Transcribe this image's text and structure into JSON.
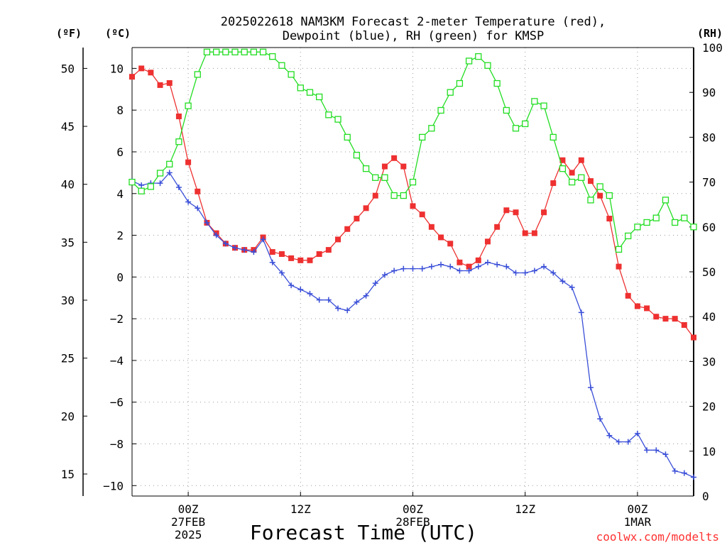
{
  "chart_data": {
    "type": "line",
    "title_line1": "2025022618 NAM3KM Forecast 2-meter Temperature (red),",
    "title_line2": "Dewpoint (blue), RH (green) for KMSP",
    "xlabel": "Forecast Time (UTC)",
    "credit": "coolwx.com/modelts",
    "units": {
      "fahrenheit": "(ºF)",
      "celsius": "(ºC)",
      "rh": "(RH)"
    },
    "x_range_hours": [
      -6,
      54
    ],
    "x_ticks": [
      {
        "hour": 0,
        "lines": [
          "00Z",
          "27FEB",
          "2025"
        ]
      },
      {
        "hour": 12,
        "lines": [
          "12Z"
        ]
      },
      {
        "hour": 24,
        "lines": [
          "00Z",
          "28FEB"
        ]
      },
      {
        "hour": 36,
        "lines": [
          "12Z"
        ]
      },
      {
        "hour": 48,
        "lines": [
          "00Z",
          "1MAR"
        ]
      }
    ],
    "celsius_axis": {
      "range": [
        -10.5,
        11
      ],
      "ticks": [
        -10,
        -8,
        -6,
        -4,
        -2,
        0,
        2,
        4,
        6,
        8,
        10
      ]
    },
    "fahrenheit_axis": {
      "ticks": [
        15,
        20,
        25,
        30,
        35,
        40,
        45,
        50
      ]
    },
    "rh_axis": {
      "range": [
        0,
        100
      ],
      "ticks": [
        0,
        10,
        20,
        30,
        40,
        50,
        60,
        70,
        80,
        90,
        100
      ]
    },
    "grid": true,
    "series": [
      {
        "name": "Temperature",
        "color": "#ee3030",
        "axis": "celsius",
        "marker": "filled-square",
        "x": [
          -6,
          -5,
          -4,
          -3,
          -2,
          -1,
          0,
          1,
          2,
          3,
          4,
          5,
          6,
          7,
          8,
          9,
          10,
          11,
          12,
          13,
          14,
          15,
          16,
          17,
          18,
          19,
          20,
          21,
          22,
          23,
          24,
          25,
          26,
          27,
          28,
          29,
          30,
          31,
          32,
          33,
          34,
          35,
          36,
          37,
          38,
          39,
          40,
          41,
          42,
          43,
          44,
          45,
          46,
          47,
          48,
          49,
          50,
          51,
          52,
          53,
          54
        ],
        "values": [
          9.6,
          10.0,
          9.8,
          9.2,
          9.3,
          7.7,
          5.5,
          4.1,
          2.6,
          2.1,
          1.6,
          1.4,
          1.3,
          1.3,
          1.9,
          1.2,
          1.1,
          0.9,
          0.8,
          0.8,
          1.1,
          1.3,
          1.8,
          2.3,
          2.8,
          3.3,
          3.9,
          5.3,
          5.7,
          5.3,
          3.4,
          3.0,
          2.4,
          1.9,
          1.6,
          0.7,
          0.5,
          0.8,
          1.7,
          2.4,
          3.2,
          3.1,
          2.1,
          2.1,
          3.1,
          4.5,
          5.6,
          5.0,
          5.6,
          4.6,
          3.9,
          2.8,
          0.5,
          -0.9,
          -1.4,
          -1.5,
          -1.9,
          -2.0,
          -2.0,
          -2.3,
          -2.9
        ]
      },
      {
        "name": "Dewpoint",
        "color": "#3a4fd8",
        "axis": "celsius",
        "marker": "plus",
        "x": [
          -6,
          -5,
          -4,
          -3,
          -2,
          -1,
          0,
          1,
          2,
          3,
          4,
          5,
          6,
          7,
          8,
          9,
          10,
          11,
          12,
          13,
          14,
          15,
          16,
          17,
          18,
          19,
          20,
          21,
          22,
          23,
          24,
          25,
          26,
          27,
          28,
          29,
          30,
          31,
          32,
          33,
          34,
          35,
          36,
          37,
          38,
          39,
          40,
          41,
          42,
          43,
          44,
          45,
          46,
          47,
          48,
          49,
          50,
          51,
          52,
          53,
          54
        ],
        "values": [
          4.6,
          4.4,
          4.5,
          4.5,
          5.0,
          4.3,
          3.6,
          3.3,
          2.6,
          2.0,
          1.6,
          1.4,
          1.3,
          1.2,
          1.8,
          0.7,
          0.2,
          -0.4,
          -0.6,
          -0.8,
          -1.1,
          -1.1,
          -1.5,
          -1.6,
          -1.2,
          -0.9,
          -0.3,
          0.1,
          0.3,
          0.4,
          0.4,
          0.4,
          0.5,
          0.6,
          0.5,
          0.3,
          0.3,
          0.5,
          0.7,
          0.6,
          0.5,
          0.2,
          0.2,
          0.3,
          0.5,
          0.2,
          -0.2,
          -0.5,
          -1.7,
          -5.3,
          -6.8,
          -7.6,
          -7.9,
          -7.9,
          -7.5,
          -8.3,
          -8.3,
          -8.5,
          -9.3,
          -9.4,
          -9.6
        ]
      },
      {
        "name": "RH",
        "color": "#22dd22",
        "axis": "rh",
        "marker": "open-square",
        "x": [
          -6,
          -5,
          -4,
          -3,
          -2,
          -1,
          0,
          1,
          2,
          3,
          4,
          5,
          6,
          7,
          8,
          9,
          10,
          11,
          12,
          13,
          14,
          15,
          16,
          17,
          18,
          19,
          20,
          21,
          22,
          23,
          24,
          25,
          26,
          27,
          28,
          29,
          30,
          31,
          32,
          33,
          34,
          35,
          36,
          37,
          38,
          39,
          40,
          41,
          42,
          43,
          44,
          45,
          46,
          47,
          48,
          49,
          50,
          51,
          52,
          53,
          54
        ],
        "values": [
          70,
          68,
          69,
          72,
          74,
          79,
          87,
          94,
          99,
          99,
          99,
          99,
          99,
          99,
          99,
          98,
          96,
          94,
          91,
          90,
          89,
          85,
          84,
          80,
          76,
          73,
          71,
          71,
          67,
          67,
          70,
          80,
          82,
          86,
          90,
          92,
          97,
          98,
          96,
          92,
          86,
          82,
          83,
          88,
          87,
          80,
          73,
          70,
          71,
          66,
          69,
          67,
          55,
          58,
          60,
          61,
          62,
          66,
          61,
          62,
          60
        ]
      }
    ]
  }
}
